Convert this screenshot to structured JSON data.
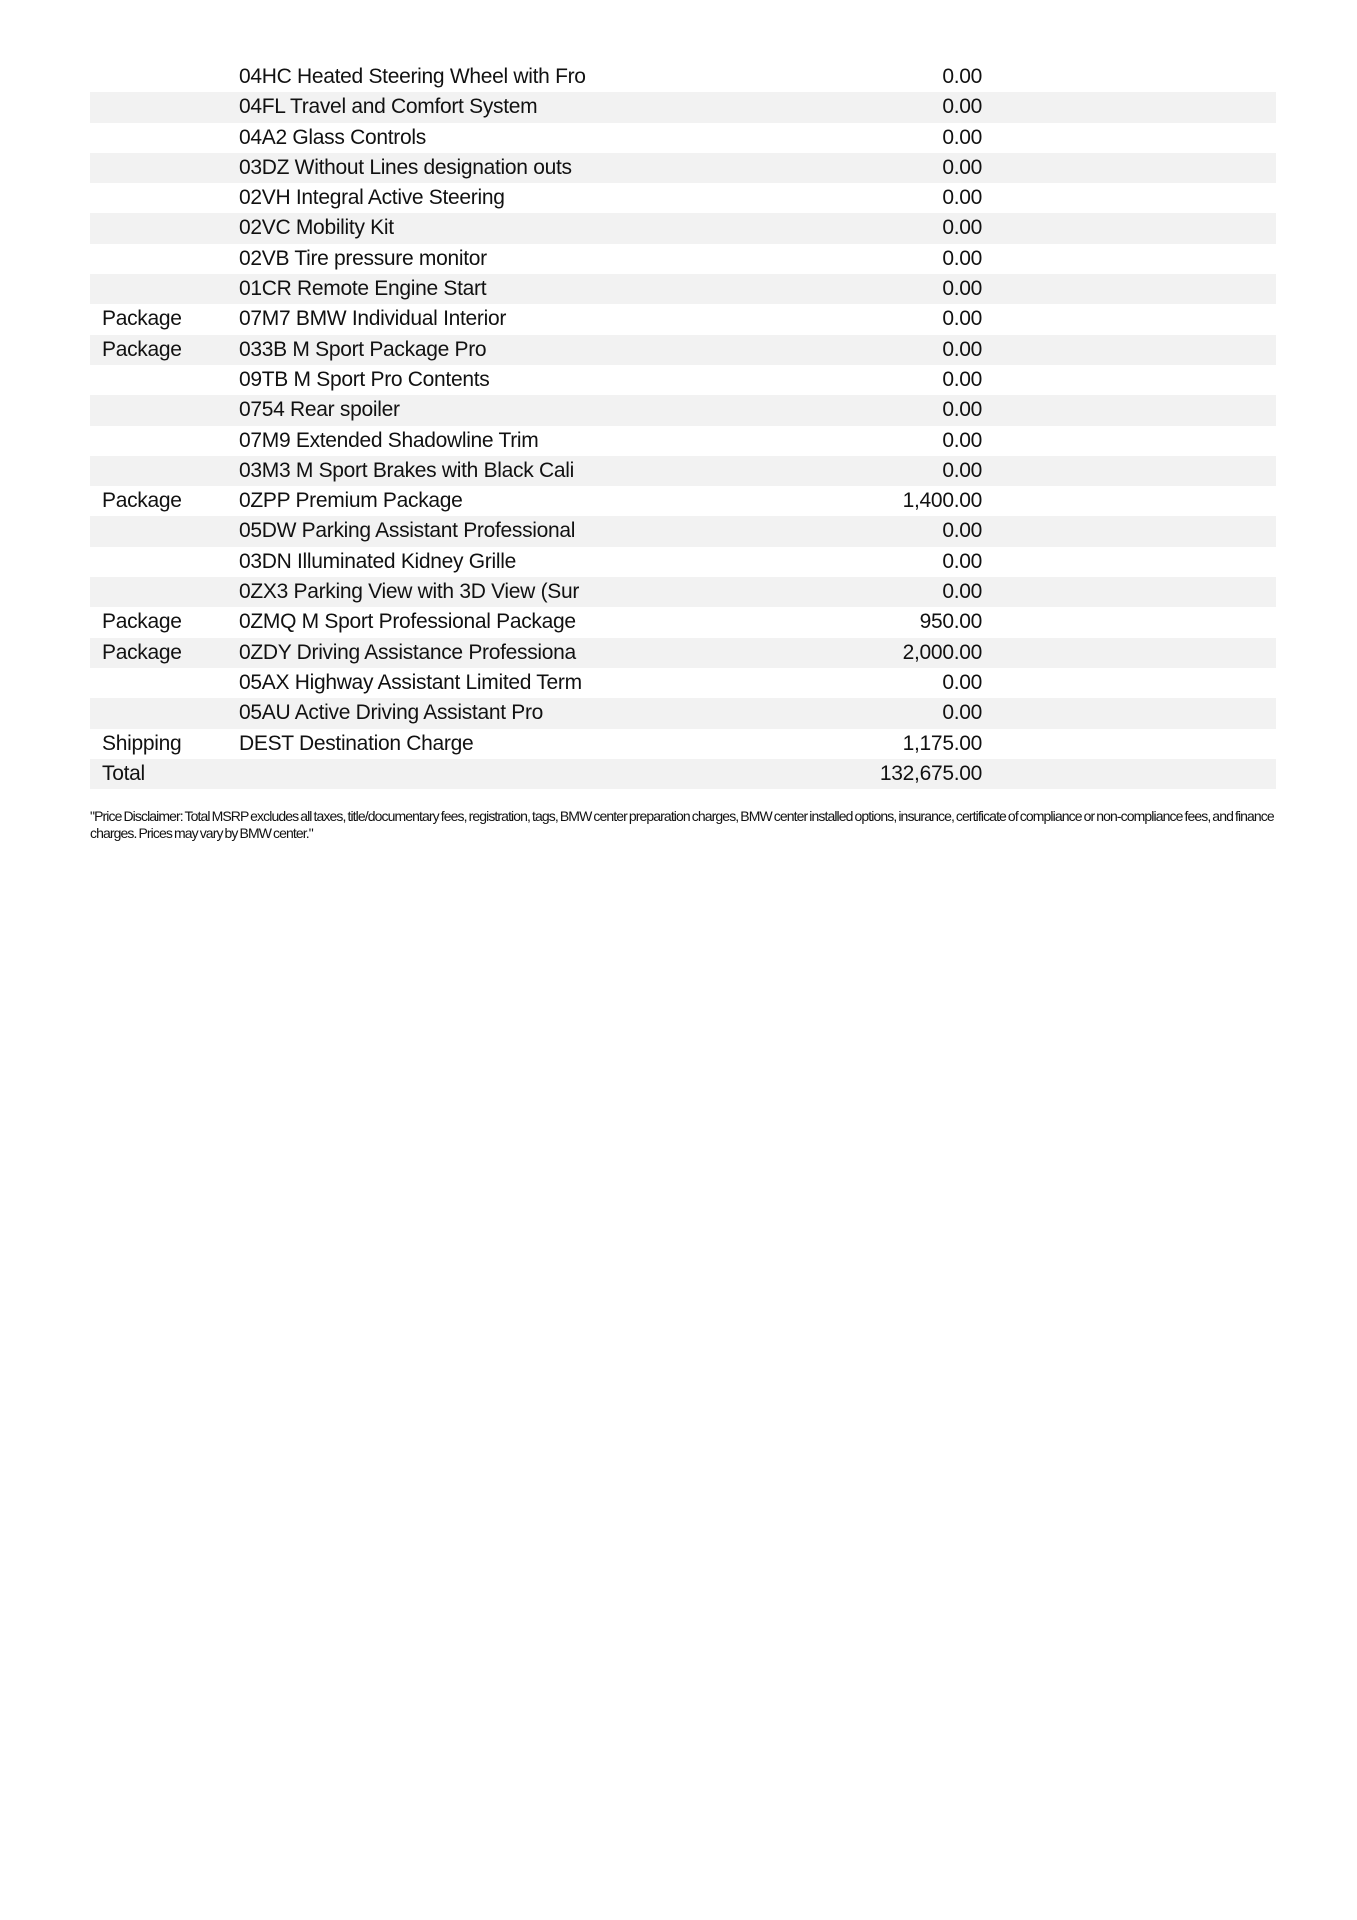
{
  "rows": [
    {
      "type": "",
      "description": "04HC Heated Steering Wheel with Fro",
      "amount": "0.00"
    },
    {
      "type": "",
      "description": "04FL Travel and Comfort System",
      "amount": "0.00"
    },
    {
      "type": "",
      "description": "04A2 Glass Controls",
      "amount": "0.00"
    },
    {
      "type": "",
      "description": "03DZ Without Lines designation outs",
      "amount": "0.00"
    },
    {
      "type": "",
      "description": "02VH Integral Active Steering",
      "amount": "0.00"
    },
    {
      "type": "",
      "description": "02VC Mobility Kit",
      "amount": "0.00"
    },
    {
      "type": "",
      "description": "02VB Tire pressure monitor",
      "amount": "0.00"
    },
    {
      "type": "",
      "description": "01CR Remote Engine Start",
      "amount": "0.00"
    },
    {
      "type": "Package",
      "description": "07M7 BMW Individual Interior",
      "amount": "0.00"
    },
    {
      "type": "Package",
      "description": "033B M Sport Package Pro",
      "amount": "0.00"
    },
    {
      "type": "",
      "description": "09TB M Sport Pro Contents",
      "amount": "0.00"
    },
    {
      "type": "",
      "description": "0754 Rear spoiler",
      "amount": "0.00"
    },
    {
      "type": "",
      "description": "07M9 Extended Shadowline Trim",
      "amount": "0.00"
    },
    {
      "type": "",
      "description": "03M3 M Sport Brakes with Black Cali",
      "amount": "0.00"
    },
    {
      "type": "Package",
      "description": "0ZPP Premium Package",
      "amount": "1,400.00"
    },
    {
      "type": "",
      "description": "05DW Parking Assistant Professional",
      "amount": "0.00"
    },
    {
      "type": "",
      "description": "03DN Illuminated Kidney Grille",
      "amount": "0.00"
    },
    {
      "type": "",
      "description": "0ZX3 Parking View with 3D View (Sur",
      "amount": "0.00"
    },
    {
      "type": "Package",
      "description": "0ZMQ M Sport Professional Package",
      "amount": "950.00"
    },
    {
      "type": "Package",
      "description": "0ZDY Driving Assistance Professiona",
      "amount": "2,000.00"
    },
    {
      "type": "",
      "description": "05AX Highway Assistant Limited Term",
      "amount": "0.00"
    },
    {
      "type": "",
      "description": "05AU Active Driving Assistant Pro",
      "amount": "0.00"
    },
    {
      "type": "Shipping",
      "description": "DEST Destination Charge",
      "amount": "1,175.00"
    },
    {
      "type": "Total",
      "description": "",
      "amount": "132,675.00"
    }
  ],
  "disclaimer": "\"Price Disclaimer: Total MSRP excludes all taxes, title/documentary fees, registration, tags, BMW center preparation charges, BMW center installed options, insurance, certificate of compliance or non-compliance fees, and finance charges. Prices may vary by BMW center.\"",
  "colors": {
    "stripe": "#f2f2f2",
    "text": "#111111"
  }
}
